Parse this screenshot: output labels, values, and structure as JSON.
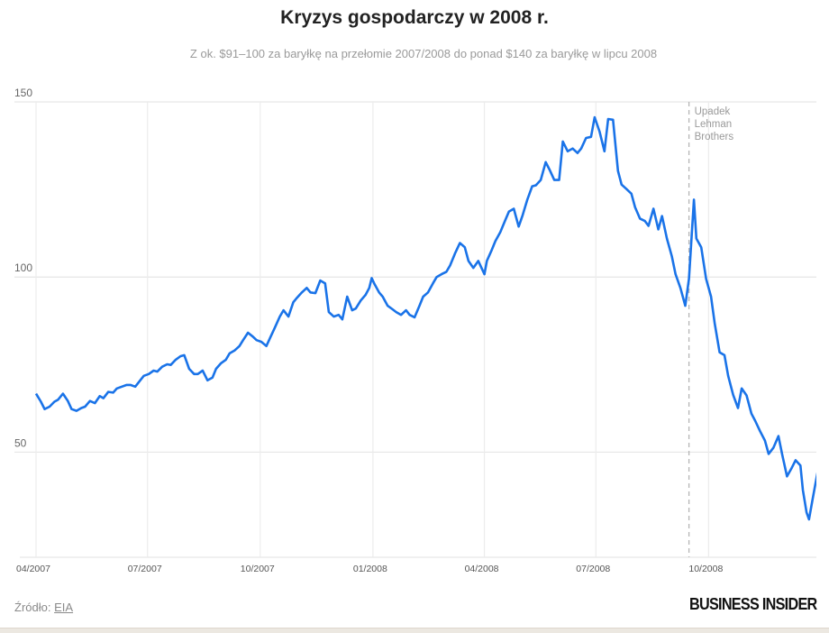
{
  "chart_data": {
    "type": "line",
    "title": "Kryzys gospodarczy w 2008 r.",
    "subtitle": "Z ok. $91–100 za baryłkę na przełomie 2007/2008 do ponad $140 za baryłkę w lipcu 2008",
    "xlabel": "",
    "ylabel": "",
    "ylim": [
      20,
      150
    ],
    "xlim": [
      "2007-04-01",
      "2008-12-28"
    ],
    "yticks": [
      50,
      100,
      150
    ],
    "xticks": [
      {
        "date": "2007-04-01",
        "label": "04/2007"
      },
      {
        "date": "2007-07-01",
        "label": "07/2007"
      },
      {
        "date": "2007-10-01",
        "label": "10/2007"
      },
      {
        "date": "2008-01-01",
        "label": "01/2008"
      },
      {
        "date": "2008-04-01",
        "label": "04/2008"
      },
      {
        "date": "2008-07-01",
        "label": "07/2008"
      },
      {
        "date": "2008-10-01",
        "label": "10/2008"
      }
    ],
    "grid": true,
    "line_color": "#1a73e8",
    "annotation": {
      "date": "2008-09-15",
      "text": [
        "Upadek",
        "Lehman",
        "Brothers"
      ],
      "style": "dashed-vertical"
    },
    "x": [
      "2007-04-01",
      "2007-04-05",
      "2007-04-08",
      "2007-04-12",
      "2007-04-16",
      "2007-04-19",
      "2007-04-23",
      "2007-04-27",
      "2007-04-30",
      "2007-05-04",
      "2007-05-08",
      "2007-05-11",
      "2007-05-15",
      "2007-05-19",
      "2007-05-23",
      "2007-05-26",
      "2007-05-30",
      "2007-06-03",
      "2007-06-06",
      "2007-06-10",
      "2007-06-14",
      "2007-06-17",
      "2007-06-21",
      "2007-06-25",
      "2007-06-28",
      "2007-07-02",
      "2007-07-06",
      "2007-07-09",
      "2007-07-13",
      "2007-07-17",
      "2007-07-20",
      "2007-07-24",
      "2007-07-28",
      "2007-07-31",
      "2007-08-04",
      "2007-08-08",
      "2007-08-11",
      "2007-08-15",
      "2007-08-19",
      "2007-08-23",
      "2007-08-26",
      "2007-08-30",
      "2007-09-03",
      "2007-09-06",
      "2007-09-10",
      "2007-09-14",
      "2007-09-17",
      "2007-09-21",
      "2007-09-25",
      "2007-09-28",
      "2007-10-02",
      "2007-10-06",
      "2007-10-09",
      "2007-10-13",
      "2007-10-17",
      "2007-10-20",
      "2007-10-24",
      "2007-10-28",
      "2007-10-31",
      "2007-11-04",
      "2007-11-08",
      "2007-11-11",
      "2007-11-15",
      "2007-11-19",
      "2007-11-23",
      "2007-11-26",
      "2007-11-30",
      "2007-12-04",
      "2007-12-07",
      "2007-12-11",
      "2007-12-15",
      "2007-12-18",
      "2007-12-22",
      "2007-12-26",
      "2007-12-29",
      "2007-12-31",
      "2008-01-02",
      "2008-01-06",
      "2008-01-09",
      "2008-01-13",
      "2008-01-17",
      "2008-01-20",
      "2008-01-24",
      "2008-01-28",
      "2008-01-31",
      "2008-02-04",
      "2008-02-08",
      "2008-02-11",
      "2008-02-15",
      "2008-02-19",
      "2008-02-22",
      "2008-02-26",
      "2008-03-01",
      "2008-03-04",
      "2008-03-08",
      "2008-03-12",
      "2008-03-16",
      "2008-03-19",
      "2008-03-23",
      "2008-03-27",
      "2008-04-01",
      "2008-04-03",
      "2008-04-07",
      "2008-04-10",
      "2008-04-14",
      "2008-04-18",
      "2008-04-21",
      "2008-04-25",
      "2008-04-29",
      "2008-05-02",
      "2008-05-06",
      "2008-05-10",
      "2008-05-13",
      "2008-05-17",
      "2008-05-21",
      "2008-05-24",
      "2008-05-28",
      "2008-06-01",
      "2008-06-04",
      "2008-06-08",
      "2008-06-12",
      "2008-06-16",
      "2008-06-19",
      "2008-06-23",
      "2008-06-27",
      "2008-06-30",
      "2008-07-04",
      "2008-07-08",
      "2008-07-11",
      "2008-07-15",
      "2008-07-19",
      "2008-07-22",
      "2008-07-26",
      "2008-07-30",
      "2008-08-02",
      "2008-08-06",
      "2008-08-10",
      "2008-08-13",
      "2008-08-17",
      "2008-08-21",
      "2008-08-24",
      "2008-08-28",
      "2008-09-01",
      "2008-09-04",
      "2008-09-08",
      "2008-09-12",
      "2008-09-15",
      "2008-09-19",
      "2008-09-21",
      "2008-09-25",
      "2008-09-29",
      "2008-10-03",
      "2008-10-06",
      "2008-10-10",
      "2008-10-14",
      "2008-10-17",
      "2008-10-21",
      "2008-10-25",
      "2008-10-28",
      "2008-11-01",
      "2008-11-05",
      "2008-11-08",
      "2008-11-12",
      "2008-11-16",
      "2008-11-19",
      "2008-11-23",
      "2008-11-27",
      "2008-11-30",
      "2008-12-04",
      "2008-12-08",
      "2008-12-11",
      "2008-12-15",
      "2008-12-17",
      "2008-12-20",
      "2008-12-22",
      "2008-12-25",
      "2008-12-27",
      "2008-12-29"
    ],
    "y": [
      66.7,
      64.4,
      62.3,
      63,
      64.4,
      65,
      66.7,
      64.6,
      62.3,
      61.8,
      62.6,
      63,
      64.6,
      64,
      66,
      65.4,
      67.2,
      67,
      68.2,
      68.7,
      69.2,
      69.2,
      68.7,
      70.5,
      71.8,
      72.3,
      73.3,
      73,
      74.4,
      75.1,
      74.9,
      76.4,
      77.4,
      77.7,
      73.8,
      72.3,
      72.3,
      73.3,
      70.5,
      71.3,
      73.8,
      75.4,
      76.4,
      78.2,
      79,
      80.3,
      82,
      84.1,
      83,
      82,
      81.5,
      80.3,
      82.6,
      85.6,
      88.7,
      90.5,
      88.7,
      92.8,
      94.1,
      95.6,
      96.9,
      95.6,
      95.4,
      99,
      98.2,
      90,
      88.7,
      89.2,
      87.9,
      94.4,
      90.5,
      91,
      93.3,
      94.9,
      96.9,
      99.7,
      98.2,
      95.6,
      94.4,
      91.8,
      90.8,
      90,
      89.2,
      90.5,
      89.2,
      88.5,
      91.8,
      94.4,
      95.6,
      98.2,
      100,
      100.8,
      101.5,
      103.3,
      106.7,
      109.7,
      108.5,
      104.6,
      102.6,
      104.6,
      100.8,
      104.6,
      107.7,
      110.3,
      112.8,
      116.2,
      118.7,
      119.5,
      114.4,
      117.4,
      122.1,
      125.9,
      126.2,
      127.7,
      132.8,
      130.8,
      127.7,
      127.7,
      138.7,
      135.9,
      136.7,
      135.4,
      136.7,
      139.7,
      140,
      145.6,
      141.5,
      135.9,
      145.1,
      144.9,
      130.3,
      126.4,
      125.1,
      123.8,
      119.9,
      116.7,
      116,
      114.6,
      119.5,
      113.6,
      117.4,
      111,
      105.9,
      100.8,
      96.9,
      91.8,
      99.5,
      122.1,
      111,
      108.5,
      99.5,
      94.4,
      86.7,
      78.5,
      77.7,
      71.8,
      66.4,
      62.6,
      68.2,
      66.2,
      61,
      59,
      56,
      53.3,
      49.5,
      51.3,
      54.6,
      49.5,
      43.1,
      45.6,
      47.7,
      46.2,
      39.2,
      32.8,
      30.8,
      36.7,
      40.5,
      44.4
    ]
  },
  "footer": {
    "source_label": "Źródło:",
    "source_link": "EIA",
    "logo": "BUSINESS INSIDER"
  }
}
